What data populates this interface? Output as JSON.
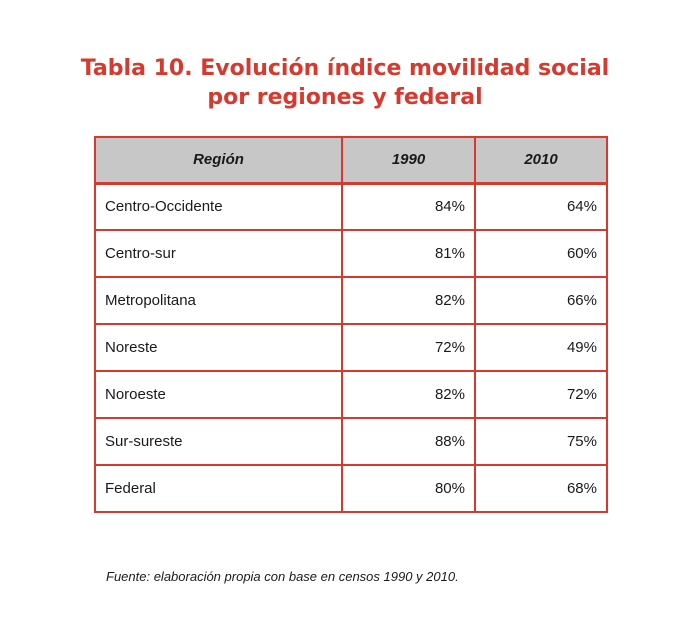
{
  "title": {
    "line1": "Tabla 10. Evolución índice movilidad social",
    "line2": "por regiones y federal"
  },
  "table": {
    "headers": [
      "Región",
      "1990",
      "2010"
    ],
    "rows": [
      [
        "Centro-Occidente",
        "84%",
        "64%"
      ],
      [
        "Centro-sur",
        "81%",
        "60%"
      ],
      [
        "Metropolitana",
        "82%",
        "66%"
      ],
      [
        "Noreste",
        "72%",
        "49%"
      ],
      [
        "Noroeste",
        "82%",
        "72%"
      ],
      [
        "Sur-sureste",
        "88%",
        "75%"
      ],
      [
        "Federal",
        "80%",
        "68%"
      ]
    ]
  },
  "source": "Fuente: elaboración propia con base en censos 1990 y 2010.",
  "colors": {
    "accent": "#d63a2f",
    "header_bg": "#c7c7c7"
  }
}
